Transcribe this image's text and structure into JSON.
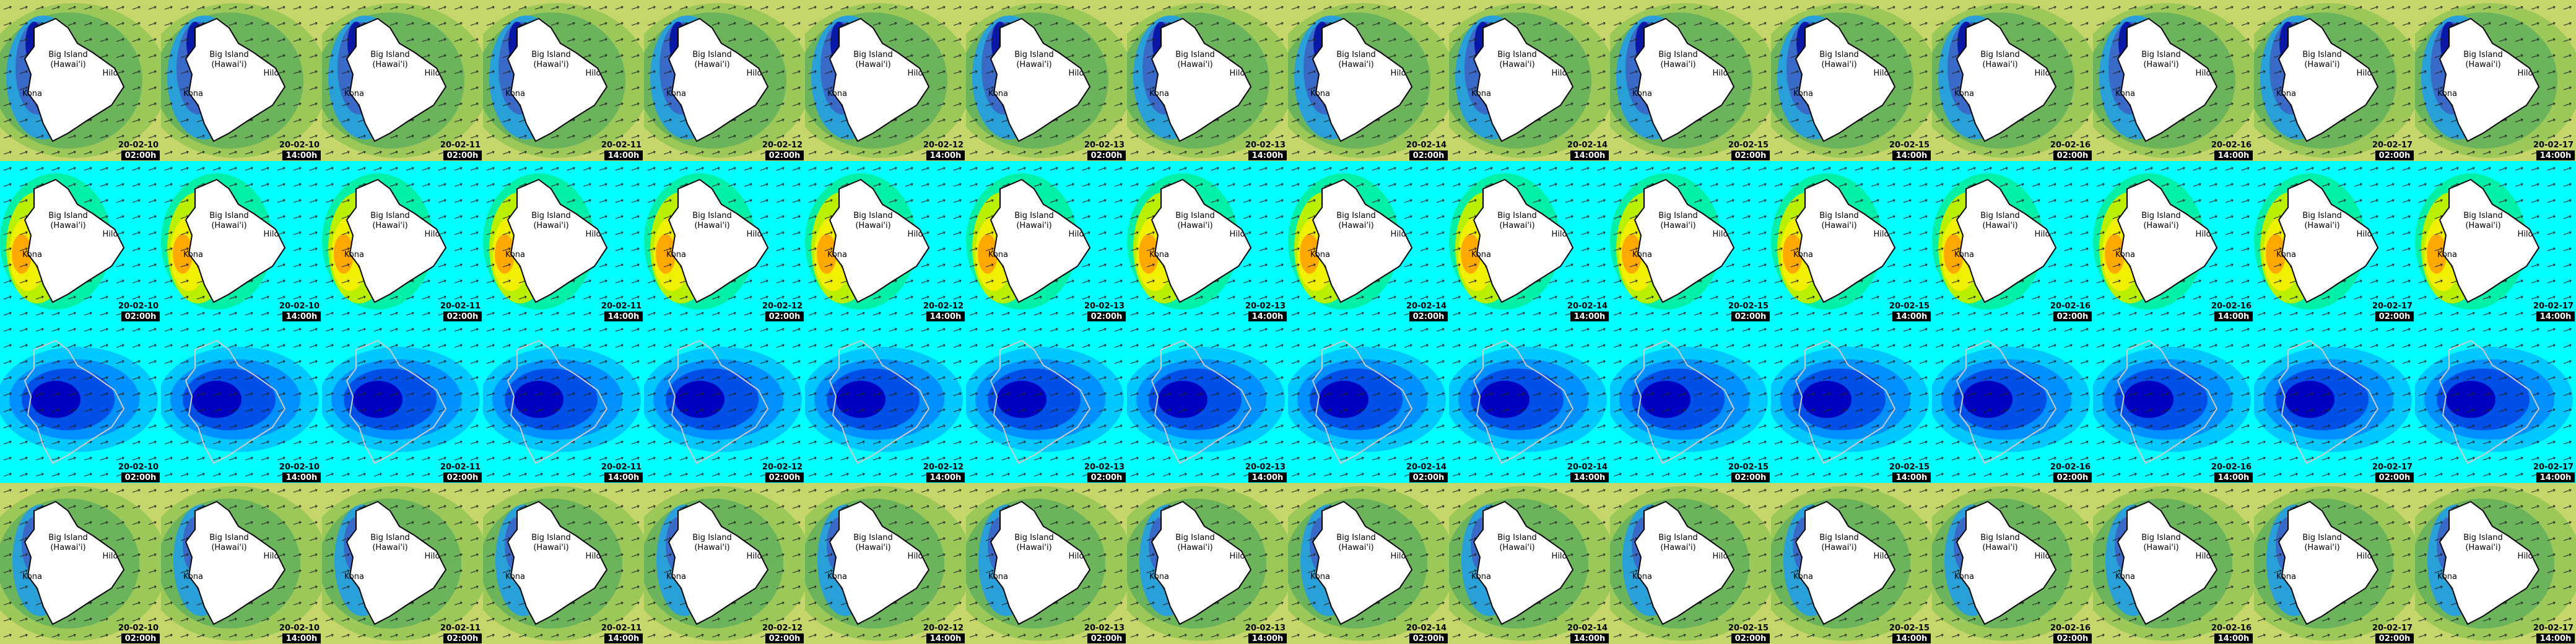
{
  "rows": [
    {
      "place_labels": [
        "Big Island",
        "(Hawai'i)",
        "Kona",
        "Hilo"
      ],
      "tiles": [
        {
          "date": "20-02-10",
          "time": "02:00h"
        },
        {
          "date": "20-02-10",
          "time": "14:00h"
        },
        {
          "date": "20-02-11",
          "time": "02:00h"
        },
        {
          "date": "20-02-11",
          "time": "14:00h"
        },
        {
          "date": "20-02-12",
          "time": "02:00h"
        },
        {
          "date": "20-02-12",
          "time": "14:00h"
        },
        {
          "date": "20-02-13",
          "time": "02:00h"
        },
        {
          "date": "20-02-13",
          "time": "14:00h"
        },
        {
          "date": "20-02-14",
          "time": "02:00h"
        },
        {
          "date": "20-02-14",
          "time": "14:00h"
        },
        {
          "date": "20-02-15",
          "time": "02:00h"
        },
        {
          "date": "20-02-15",
          "time": "14:00h"
        },
        {
          "date": "20-02-16",
          "time": "02:00h"
        },
        {
          "date": "20-02-16",
          "time": "14:00h"
        },
        {
          "date": "20-02-17",
          "time": "02:00h"
        },
        {
          "date": "20-02-17",
          "time": "14:00h"
        }
      ]
    },
    {
      "place_labels": [
        "Big Island",
        "(Hawai'i)",
        "Kona",
        "Hilo"
      ],
      "tiles": [
        {
          "date": "20-02-10",
          "time": "02:00h"
        },
        {
          "date": "20-02-10",
          "time": "14:00h"
        },
        {
          "date": "20-02-11",
          "time": "02:00h"
        },
        {
          "date": "20-02-11",
          "time": "14:00h"
        },
        {
          "date": "20-02-12",
          "time": "02:00h"
        },
        {
          "date": "20-02-12",
          "time": "14:00h"
        },
        {
          "date": "20-02-13",
          "time": "02:00h"
        },
        {
          "date": "20-02-13",
          "time": "14:00h"
        },
        {
          "date": "20-02-14",
          "time": "02:00h"
        },
        {
          "date": "20-02-14",
          "time": "14:00h"
        },
        {
          "date": "20-02-15",
          "time": "02:00h"
        },
        {
          "date": "20-02-15",
          "time": "14:00h"
        },
        {
          "date": "20-02-16",
          "time": "02:00h"
        },
        {
          "date": "20-02-16",
          "time": "14:00h"
        },
        {
          "date": "20-02-17",
          "time": "02:00h"
        },
        {
          "date": "20-02-17",
          "time": "14:00h"
        }
      ]
    },
    {
      "tiles": [
        {
          "date": "20-02-10",
          "time": "02:00h"
        },
        {
          "date": "20-02-10",
          "time": "14:00h"
        },
        {
          "date": "20-02-11",
          "time": "02:00h"
        },
        {
          "date": "20-02-11",
          "time": "14:00h"
        },
        {
          "date": "20-02-12",
          "time": "02:00h"
        },
        {
          "date": "20-02-12",
          "time": "14:00h"
        },
        {
          "date": "20-02-13",
          "time": "02:00h"
        },
        {
          "date": "20-02-13",
          "time": "14:00h"
        },
        {
          "date": "20-02-14",
          "time": "02:00h"
        },
        {
          "date": "20-02-14",
          "time": "14:00h"
        },
        {
          "date": "20-02-15",
          "time": "02:00h"
        },
        {
          "date": "20-02-15",
          "time": "14:00h"
        },
        {
          "date": "20-02-16",
          "time": "02:00h"
        },
        {
          "date": "20-02-16",
          "time": "14:00h"
        },
        {
          "date": "20-02-17",
          "time": "02:00h"
        },
        {
          "date": "20-02-17",
          "time": "14:00h"
        }
      ]
    },
    {
      "place_labels": [
        "Big Island",
        "(Hawai'i)",
        "Kona",
        "Hilo"
      ],
      "tiles": [
        {
          "date": "20-02-10",
          "time": "02:00h"
        },
        {
          "date": "20-02-10",
          "time": "14:00h"
        },
        {
          "date": "20-02-11",
          "time": "02:00h"
        },
        {
          "date": "20-02-11",
          "time": "14:00h"
        },
        {
          "date": "20-02-12",
          "time": "02:00h"
        },
        {
          "date": "20-02-12",
          "time": "14:00h"
        },
        {
          "date": "20-02-13",
          "time": "02:00h"
        },
        {
          "date": "20-02-13",
          "time": "14:00h"
        },
        {
          "date": "20-02-14",
          "time": "02:00h"
        },
        {
          "date": "20-02-14",
          "time": "14:00h"
        },
        {
          "date": "20-02-15",
          "time": "02:00h"
        },
        {
          "date": "20-02-15",
          "time": "14:00h"
        },
        {
          "date": "20-02-16",
          "time": "02:00h"
        },
        {
          "date": "20-02-16",
          "time": "14:00h"
        },
        {
          "date": "20-02-17",
          "time": "02:00h"
        },
        {
          "date": "20-02-17",
          "time": "14:00h"
        }
      ]
    }
  ]
}
